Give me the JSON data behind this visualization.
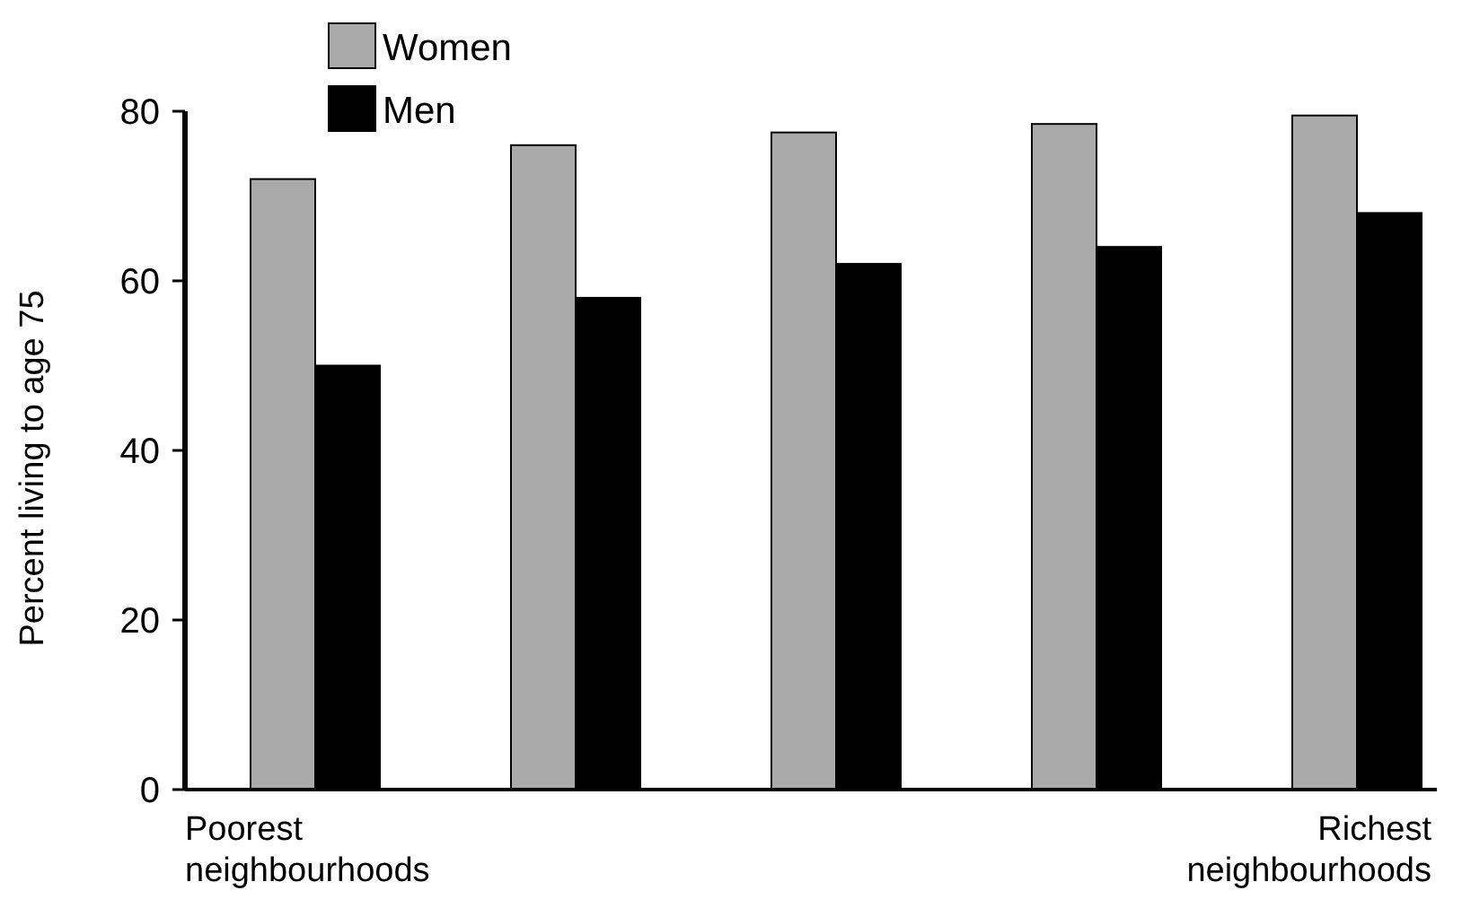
{
  "chart_data": {
    "type": "bar",
    "ylabel": "Percent living to age 75",
    "categories": [
      "Poorest neighbourhoods",
      null,
      null,
      null,
      "Richest neighbourhoods"
    ],
    "series": [
      {
        "name": "Women",
        "color": "#aaaaaa",
        "values": [
          72,
          76,
          77.5,
          78.5,
          79.5
        ]
      },
      {
        "name": "Men",
        "color": "#000000",
        "values": [
          50,
          58,
          62,
          64,
          68
        ]
      }
    ],
    "ylim": [
      0,
      80
    ],
    "yticks": [
      0,
      20,
      40,
      60,
      80
    ],
    "legend": "top left"
  }
}
